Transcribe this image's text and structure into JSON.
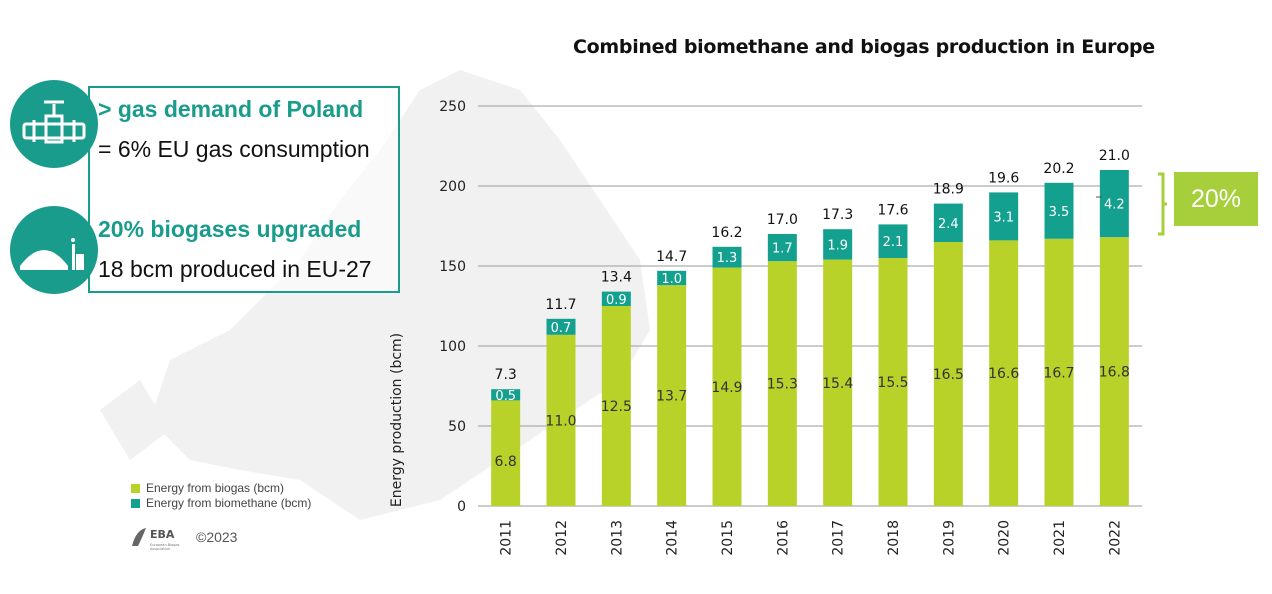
{
  "info_box": {
    "line1": "> gas demand of Poland",
    "line2": "= 6% EU gas consumption",
    "line3": "20% biogases upgraded",
    "line4": "18 bcm produced in EU-27"
  },
  "badge": {
    "label": "20%"
  },
  "footer": {
    "copyright": "©2023",
    "logo_text": "EBA",
    "logo_subtext": "European Biogas Association"
  },
  "colors": {
    "biogas": "#b8d22a",
    "biomethane": "#14a08f",
    "accent": "#1a9c8c",
    "badge": "#a6cf3b"
  },
  "chart_data": {
    "type": "bar",
    "stacked": true,
    "title": "Combined biomethane and biogas production in Europe",
    "ylabel": "Energy production (bcm)",
    "xlabel": "",
    "ylim": [
      0,
      250
    ],
    "yticks": [
      0,
      50,
      100,
      150,
      200,
      250
    ],
    "grid": true,
    "legend_position": "bottom-left",
    "categories": [
      "2011",
      "2012",
      "2013",
      "2014",
      "2015",
      "2016",
      "2017",
      "2018",
      "2019",
      "2020",
      "2021",
      "2022"
    ],
    "series": [
      {
        "name": "Energy from biogas (bcm)",
        "values": [
          6.8,
          11.0,
          12.5,
          13.7,
          14.9,
          15.3,
          15.4,
          15.5,
          16.5,
          16.6,
          16.7,
          16.8
        ],
        "labels": [
          "6.8",
          "11.0",
          "12.5",
          "13.7",
          "14.9",
          "15.3",
          "15.4",
          "15.5",
          "16.5",
          "16.6",
          "16.7",
          "16.8"
        ]
      },
      {
        "name": "Energy from biomethane (bcm)",
        "values": [
          0.5,
          0.7,
          0.9,
          1.0,
          1.3,
          1.7,
          1.9,
          2.1,
          2.4,
          3.1,
          3.5,
          4.2
        ],
        "labels": [
          "0.5",
          "0.7",
          "0.9",
          "1.0",
          "1.3",
          "1.7",
          "1.9",
          "2.1",
          "2.4",
          "3.1",
          "3.5",
          "4.2"
        ]
      }
    ],
    "totals": [
      "7.3",
      "11.7",
      "13.4",
      "14.7",
      "16.2",
      "17.0",
      "17.3",
      "17.6",
      "18.9",
      "19.6",
      "20.2",
      "21.0"
    ],
    "axis_scale_y": [
      66,
      107,
      125,
      138,
      149,
      153,
      154,
      155,
      165,
      166,
      167,
      168
    ],
    "axis_scale_y_top": [
      73,
      117,
      134,
      147,
      162,
      170,
      173,
      176,
      189,
      196,
      202,
      210
    ]
  }
}
